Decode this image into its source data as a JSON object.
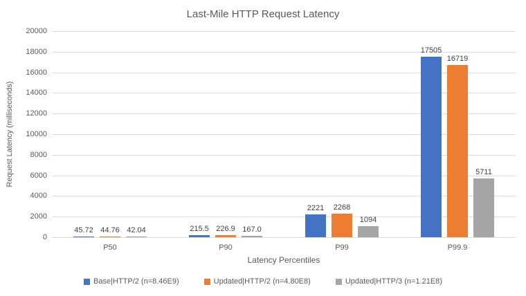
{
  "title": "Last-Mile HTTP Request Latency",
  "chart_data": {
    "type": "bar",
    "title": "Last-Mile HTTP Request Latency",
    "xlabel": "Latency Percentiles",
    "ylabel": "Request Latency (milliseconds)",
    "categories": [
      "P50",
      "P90",
      "P99",
      "P99.9"
    ],
    "series": [
      {
        "name": "Base|HTTP/2 (n=8.46E9)",
        "color": "#4472C4",
        "values": [
          45.72,
          215.5,
          2221,
          17505
        ],
        "labels": [
          "45.72",
          "215.5",
          "2221",
          "17505"
        ]
      },
      {
        "name": "Updated|HTTP/2 (n=4.80E8)",
        "color": "#ED7D31",
        "values": [
          44.76,
          226.9,
          2268,
          16719
        ],
        "labels": [
          "44.76",
          "226.9",
          "2268",
          "16719"
        ]
      },
      {
        "name": "Updated|HTTP/3 (n=1.21E8)",
        "color": "#A5A5A5",
        "values": [
          42.04,
          167.0,
          1094,
          5711
        ],
        "labels": [
          "42.04",
          "167.0",
          "1094",
          "5711"
        ]
      }
    ],
    "ylim": [
      0,
      20000
    ],
    "yticks": [
      0,
      2000,
      4000,
      6000,
      8000,
      10000,
      12000,
      14000,
      16000,
      18000,
      20000
    ],
    "ytick_labels": [
      "0",
      "2000",
      "4000",
      "6000",
      "8000",
      "10000",
      "12000",
      "14000",
      "16000",
      "18000",
      "20000"
    ],
    "grid": true,
    "legend_position": "bottom"
  },
  "colors": {
    "grid": "#D9D9D9",
    "axis_line": "#D9D9D9",
    "axis_text": "#595959",
    "data_label": "#404040",
    "background": "#FFFFFF"
  }
}
